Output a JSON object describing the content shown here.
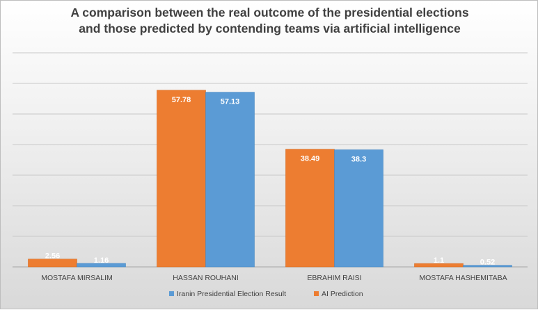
{
  "chart_data": {
    "type": "bar",
    "title_line1": "A comparison between the real outcome of the presidential elections",
    "title_line2": "and those predicted by contending teams via artificial intelligence",
    "categories": [
      "MOSTAFA MIRSALIM",
      "HASSAN ROUHANI",
      "EBRAHIM RAISI",
      "MOSTAFA HASHEMITABA"
    ],
    "series": [
      {
        "name": "AI Prediction",
        "color": "#ed7d31",
        "values": [
          2.56,
          57.78,
          38.49,
          1.1
        ]
      },
      {
        "name": "Iranin Presidential Election Result",
        "color": "#5b9bd5",
        "values": [
          1.16,
          57.13,
          38.3,
          0.52
        ]
      }
    ],
    "legend_order": [
      "Iranin Presidential Election Result",
      "AI Prediction"
    ],
    "legend_position": "bottom",
    "ylim": [
      0,
      70
    ],
    "grid": true
  }
}
